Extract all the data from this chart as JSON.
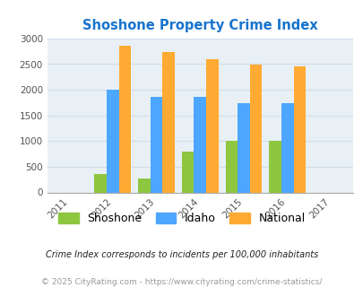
{
  "title": "Shoshone Property Crime Index",
  "years": [
    2011,
    2012,
    2013,
    2014,
    2015,
    2016,
    2017
  ],
  "plot_years": [
    2012,
    2013,
    2014,
    2015,
    2016
  ],
  "shoshone": [
    350,
    270,
    800,
    1010,
    1010
  ],
  "idaho": [
    2000,
    1870,
    1860,
    1740,
    1740
  ],
  "national": [
    2850,
    2740,
    2600,
    2490,
    2460
  ],
  "shoshone_color": "#8dc63f",
  "idaho_color": "#4da6ff",
  "national_color": "#ffaa33",
  "ylim": [
    0,
    3000
  ],
  "yticks": [
    0,
    500,
    1000,
    1500,
    2000,
    2500,
    3000
  ],
  "legend_labels": [
    "Shoshone",
    "Idaho",
    "National"
  ],
  "footnote1": "Crime Index corresponds to incidents per 100,000 inhabitants",
  "footnote2": "© 2025 CityRating.com - https://www.cityrating.com/crime-statistics/",
  "title_color": "#1874cd",
  "footnote1_color": "#222222",
  "footnote2_color": "#999999",
  "bar_width": 0.28,
  "grid_color": "#d0dde8",
  "axes_bg": "#e8f0f5",
  "fig_bg": "#ffffff"
}
